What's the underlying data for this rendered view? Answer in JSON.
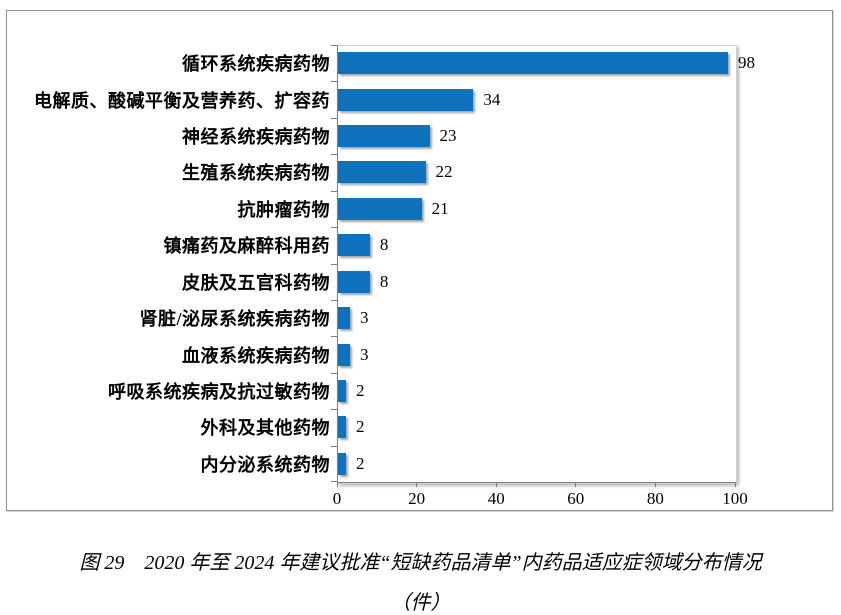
{
  "figure": {
    "caption_line1": "图 29　2020 年至 2024 年建议批准“短缺药品清单”内药品适应症领域分布情况",
    "caption_line2": "（件）"
  },
  "chart_data": {
    "type": "bar",
    "orientation": "horizontal",
    "title": "",
    "xlabel": "",
    "ylabel": "",
    "categories": [
      "循环系统疾病药物",
      "电解质、酸碱平衡及营养药、扩容药",
      "神经系统疾病药物",
      "生殖系统疾病药物",
      "抗肿瘤药物",
      "镇痛药及麻醉科用药",
      "皮肤及五官科药物",
      "肾脏/泌尿系统疾病药物",
      "血液系统疾病药物",
      "呼吸系统疾病及抗过敏药物",
      "外科及其他药物",
      "内分泌系统药物"
    ],
    "values": [
      98,
      34,
      23,
      22,
      21,
      8,
      8,
      3,
      3,
      2,
      2,
      2
    ],
    "xlim": [
      0,
      100
    ],
    "x_ticks": [
      0,
      20,
      40,
      60,
      80,
      100
    ],
    "grid": false,
    "legend": false,
    "data_labels": true,
    "bar_color": "#1072BC",
    "axis_color": "#7f7f7f"
  }
}
